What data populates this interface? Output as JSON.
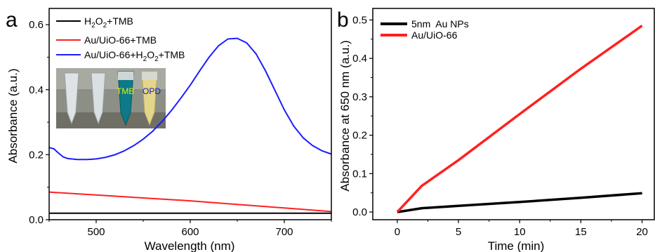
{
  "chart_data": [
    {
      "panel_label": "a",
      "type": "line",
      "xlabel": "Wavelength (nm)",
      "ylabel": "Absorbance (a.u.)",
      "xlim": [
        450,
        750
      ],
      "ylim": [
        0,
        0.65
      ],
      "xticks": [
        500,
        600,
        700
      ],
      "yticks": [
        0.0,
        0.2,
        0.4,
        0.6
      ],
      "legend_position": "top-left",
      "series": [
        {
          "name_parts": [
            "H",
            "2",
            "O",
            "2",
            "+TMB"
          ],
          "color": "#000000",
          "x": [
            450,
            500,
            550,
            600,
            650,
            700,
            750
          ],
          "y": [
            0.02,
            0.02,
            0.02,
            0.02,
            0.02,
            0.02,
            0.02
          ]
        },
        {
          "name": "Au/UiO-66+TMB",
          "color": "#ff2020",
          "x": [
            450,
            500,
            550,
            600,
            650,
            700,
            750
          ],
          "y": [
            0.085,
            0.076,
            0.067,
            0.058,
            0.047,
            0.036,
            0.025
          ]
        },
        {
          "name_parts": [
            "Au/UiO-66+H",
            "2",
            "O",
            "2",
            "+TMB"
          ],
          "color": "#1c1cff",
          "x": [
            450,
            455,
            460,
            465,
            470,
            480,
            490,
            500,
            510,
            520,
            530,
            540,
            550,
            560,
            570,
            580,
            590,
            600,
            610,
            620,
            630,
            640,
            650,
            660,
            670,
            680,
            690,
            700,
            710,
            720,
            730,
            740,
            750
          ],
          "y": [
            0.222,
            0.218,
            0.205,
            0.193,
            0.188,
            0.185,
            0.185,
            0.187,
            0.192,
            0.2,
            0.212,
            0.228,
            0.248,
            0.272,
            0.302,
            0.336,
            0.374,
            0.414,
            0.458,
            0.5,
            0.535,
            0.556,
            0.558,
            0.544,
            0.51,
            0.458,
            0.398,
            0.338,
            0.288,
            0.252,
            0.228,
            0.212,
            0.202
          ]
        }
      ],
      "inset_photo_labels": [
        "TMB",
        "OPD"
      ]
    },
    {
      "panel_label": "b",
      "type": "line",
      "xlabel": "Time (min)",
      "ylabel": "Absorbance at 650 nm (a.u.)",
      "xlim": [
        -2,
        21
      ],
      "ylim": [
        -0.02,
        0.53
      ],
      "xticks": [
        0,
        5,
        10,
        15,
        20
      ],
      "yticks": [
        0.0,
        0.1,
        0.2,
        0.3,
        0.4,
        0.5
      ],
      "legend_position": "top-left",
      "series": [
        {
          "name": "5nm  Au NPs",
          "color": "#000000",
          "x": [
            0,
            2,
            5,
            10,
            15,
            20
          ],
          "y": [
            0.0,
            0.01,
            0.016,
            0.026,
            0.037,
            0.049
          ]
        },
        {
          "name": "Au/UiO-66",
          "color": "#ff2020",
          "x": [
            0,
            2,
            5,
            10,
            15,
            20
          ],
          "y": [
            0.0,
            0.068,
            0.135,
            0.255,
            0.373,
            0.485
          ]
        }
      ]
    }
  ]
}
